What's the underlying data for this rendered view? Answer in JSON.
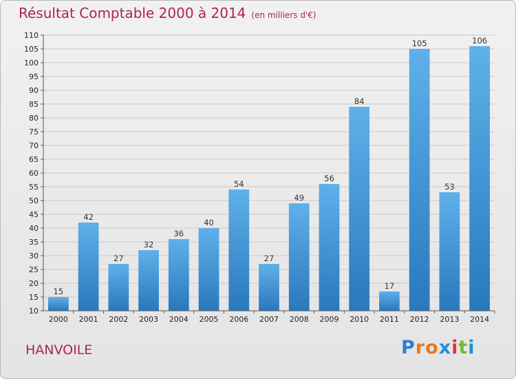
{
  "header": {
    "title": "Résultat Comptable 2000 à 2014",
    "unit": "(en milliers d'€)"
  },
  "footer": {
    "commune": "HANVOILE",
    "logo": {
      "letters": [
        "P",
        "r",
        "o",
        "x",
        "i",
        "t",
        "i"
      ],
      "colors": [
        "#2a7fd4",
        "#e8781e",
        "#e8781e",
        "#1f8fd8",
        "#e2342d",
        "#7ab82f",
        "#1f8fd8"
      ]
    }
  },
  "chart_data": {
    "type": "bar",
    "categories": [
      "2000",
      "2001",
      "2002",
      "2003",
      "2004",
      "2005",
      "2006",
      "2007",
      "2008",
      "2009",
      "2010",
      "2011",
      "2012",
      "2013",
      "2014"
    ],
    "values": [
      15,
      42,
      27,
      32,
      36,
      40,
      54,
      27,
      49,
      56,
      84,
      17,
      105,
      53,
      106
    ],
    "ylim": [
      10,
      110
    ],
    "yticks": [
      10,
      15,
      20,
      25,
      30,
      35,
      40,
      45,
      50,
      55,
      60,
      65,
      70,
      75,
      80,
      85,
      90,
      95,
      100,
      105,
      110
    ],
    "grid": true,
    "bar_color": "#3f95d6"
  }
}
